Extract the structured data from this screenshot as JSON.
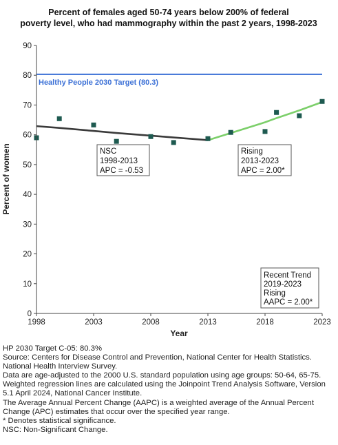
{
  "chart_data": {
    "type": "scatter",
    "title_lines": [
      "Percent of females aged 50-74 years below 200% of federal",
      "poverty level, who had mammography within the past 2 years, 1998-2023"
    ],
    "xlabel": "Year",
    "ylabel": "Percent of women",
    "xlim": [
      1998,
      2023
    ],
    "ylim": [
      0,
      90
    ],
    "x_ticks": [
      1998,
      2003,
      2008,
      2013,
      2018,
      2023
    ],
    "y_ticks": [
      0,
      10,
      20,
      30,
      40,
      50,
      60,
      70,
      80,
      90
    ],
    "grid": false,
    "observed": {
      "x": [
        1998,
        2000,
        2003,
        2005,
        2008,
        2010,
        2013,
        2015,
        2018,
        2019,
        2021,
        2023
      ],
      "y": [
        59.0,
        65.4,
        63.3,
        57.8,
        59.4,
        57.4,
        58.7,
        60.8,
        61.1,
        67.5,
        66.4,
        71.2
      ]
    },
    "trend_segments": [
      {
        "x": [
          1998,
          2000,
          2003,
          2005,
          2008,
          2010,
          2013
        ],
        "y": [
          62.9,
          62.3,
          61.3,
          60.6,
          59.7,
          59.1,
          58.2
        ],
        "color": "#3a3a3a"
      },
      {
        "x": [
          2013,
          2015,
          2018,
          2019,
          2021,
          2023
        ],
        "y": [
          58.2,
          60.6,
          64.2,
          65.6,
          68.2,
          71.0
        ],
        "color": "#7ccf6a"
      }
    ],
    "target": {
      "value": 80.3,
      "label": "Healthy People 2030 Target (80.3)",
      "color": "#3a6fd6"
    },
    "marker_color": "#1e5a50",
    "annotations": [
      {
        "lines": [
          "NSC",
          "1998-2013",
          "APC = -0.53"
        ]
      },
      {
        "lines": [
          "Rising",
          "2013-2023",
          "APC =  2.00*"
        ]
      },
      {
        "lines": [
          "Recent Trend",
          "2019-2023",
          "Rising",
          "AAPC =  2.00*"
        ]
      }
    ]
  },
  "footnotes": [
    "HP 2030 Target C-05: 80.3%",
    "Source: Centers for Disease Control and Prevention, National Center for Health Statistics. National Health Interview Survey.",
    "Data are age-adjusted to the 2000 U.S. standard population using age groups: 50-64, 65-75.",
    "Weighted regression lines are calculated using the Joinpoint Trend Analysis Software, Version 5.1 April 2024, National Cancer Institute.",
    "The Average Annual Percent Change (AAPC) is a weighted average of the Annual Percent Change (APC) estimates that occur over the specified year range.",
    "* Denotes statistical significance.",
    "NSC: Non-Significant Change."
  ]
}
